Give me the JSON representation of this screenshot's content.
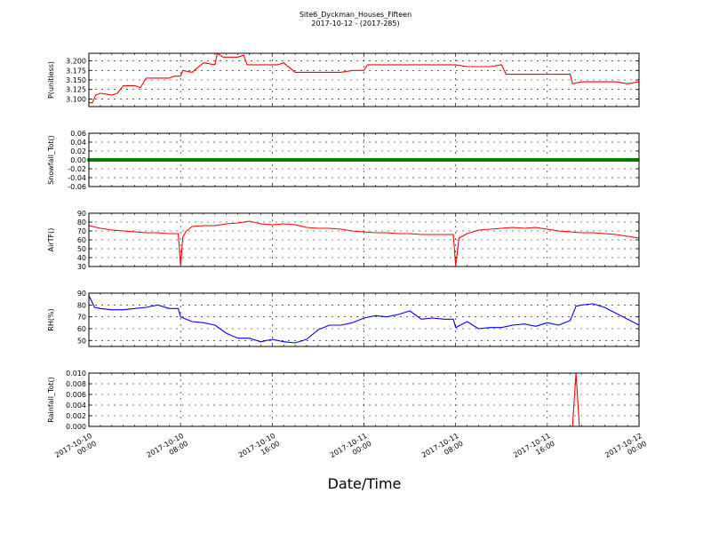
{
  "chart_data": [
    {
      "type": "line",
      "title": "Site6_Dyckman_Houses_Fifteen",
      "subtitle": "2017-10-12 - (2017-285)",
      "ylabel": "P(unitless)",
      "ylim": [
        3.08,
        3.22
      ],
      "yticks": [
        "3.100",
        "3.125",
        "3.150",
        "3.175",
        "3.200"
      ],
      "ytick_values": [
        3.1,
        3.125,
        3.15,
        3.175,
        3.2
      ],
      "color": "#ff0000",
      "x_hours": [
        0,
        0.3,
        0.6,
        1,
        2,
        2.5,
        3,
        4,
        4.5,
        5,
        6,
        7,
        7.5,
        8,
        8.2,
        9,
        10,
        11,
        11.2,
        11.7,
        13,
        13.5,
        13.8,
        15,
        16,
        16.5,
        17,
        18,
        20,
        21,
        22,
        23,
        24,
        24.3,
        25,
        26,
        27,
        28,
        30,
        31,
        32,
        33,
        35,
        36,
        36.4,
        37,
        38,
        39,
        40,
        41,
        42,
        42.2,
        43,
        44,
        45,
        46,
        47,
        48
      ],
      "y": [
        3.09,
        3.09,
        3.11,
        3.115,
        3.11,
        3.115,
        3.135,
        3.135,
        3.13,
        3.155,
        3.155,
        3.155,
        3.16,
        3.16,
        3.175,
        3.17,
        3.195,
        3.19,
        3.22,
        3.21,
        3.21,
        3.215,
        3.19,
        3.19,
        3.19,
        3.19,
        3.195,
        3.17,
        3.17,
        3.17,
        3.17,
        3.175,
        3.175,
        3.19,
        3.19,
        3.19,
        3.19,
        3.19,
        3.19,
        3.19,
        3.19,
        3.185,
        3.185,
        3.19,
        3.165,
        3.165,
        3.165,
        3.165,
        3.165,
        3.165,
        3.165,
        3.14,
        3.145,
        3.145,
        3.145,
        3.145,
        3.14,
        3.145
      ]
    },
    {
      "type": "scatter",
      "ylabel": "Snowfall_Tot()",
      "ylim": [
        -0.06,
        0.06
      ],
      "yticks": [
        "-0.06",
        "-0.04",
        "-0.02",
        "0.00",
        "0.02",
        "0.04",
        "0.06"
      ],
      "ytick_values": [
        -0.06,
        -0.04,
        -0.02,
        0,
        0.02,
        0.04,
        0.06
      ],
      "color": "#008000",
      "constant_value": 0.0
    },
    {
      "type": "line",
      "ylabel": "AirTF()",
      "ylim": [
        30,
        90
      ],
      "yticks": [
        "30",
        "40",
        "50",
        "60",
        "70",
        "80",
        "90"
      ],
      "ytick_values": [
        30,
        40,
        50,
        60,
        70,
        80,
        90
      ],
      "color": "#ff0000",
      "x_hours": [
        0,
        1,
        2,
        3,
        4,
        5,
        6,
        7,
        7.8,
        8,
        8.2,
        8.5,
        9,
        10,
        11,
        12,
        13,
        14,
        15,
        16,
        17,
        18,
        19,
        20,
        21,
        22,
        23,
        24,
        25,
        26,
        27,
        28,
        29,
        30,
        31,
        31.8,
        32,
        32.3,
        33,
        34,
        35,
        36,
        37,
        38,
        39,
        40,
        41,
        42,
        43,
        44,
        45,
        46,
        47,
        48
      ],
      "y": [
        76,
        73,
        71,
        70,
        69,
        68,
        68,
        67,
        67,
        31,
        63,
        70,
        75,
        76,
        76,
        78,
        79,
        81,
        78,
        77,
        78,
        77,
        74,
        73,
        73,
        72,
        70,
        69,
        68,
        68,
        67,
        67,
        66,
        66,
        66,
        66,
        31,
        62,
        67,
        71,
        72,
        73,
        74,
        73,
        74,
        72,
        70,
        69,
        68,
        68,
        67,
        66,
        64,
        62
      ]
    },
    {
      "type": "line",
      "ylabel": "RH(%)",
      "ylim": [
        45,
        90
      ],
      "yticks": [
        "50",
        "60",
        "70",
        "80",
        "90"
      ],
      "ytick_values": [
        50,
        60,
        70,
        80,
        90
      ],
      "color": "#0000ff",
      "x_hours": [
        0,
        0.5,
        1,
        2,
        3,
        4,
        5,
        6,
        7,
        7.8,
        8,
        9,
        10,
        11,
        12,
        13,
        14,
        15,
        16,
        17,
        18,
        19,
        20,
        21,
        22,
        23,
        24,
        25,
        26,
        27,
        28,
        29,
        30,
        31,
        31.8,
        32,
        33,
        34,
        35,
        36,
        37,
        38,
        39,
        40,
        41,
        42,
        42.5,
        43,
        44,
        45,
        46,
        47,
        48
      ],
      "y": [
        88,
        78,
        77,
        76,
        76,
        77,
        78,
        80,
        77,
        77,
        70,
        66,
        65,
        63,
        56,
        52,
        52,
        49,
        51,
        49,
        48,
        51,
        59,
        63,
        63,
        65,
        69,
        71,
        70,
        72,
        75,
        68,
        69,
        68,
        68,
        61,
        66,
        60,
        61,
        61,
        63,
        64,
        62,
        65,
        63,
        67,
        79,
        80,
        81,
        78,
        73,
        68,
        63
      ]
    },
    {
      "type": "line",
      "ylabel": "Rainfall_Tot()",
      "ylim": [
        0,
        0.01
      ],
      "yticks": [
        "0.000",
        "0.002",
        "0.004",
        "0.006",
        "0.008",
        "0.010"
      ],
      "ytick_values": [
        0,
        0.002,
        0.004,
        0.006,
        0.008,
        0.01
      ],
      "color": "#ff0000",
      "x_hours": [
        0,
        42.2,
        42.5,
        42.8,
        48
      ],
      "y": [
        0,
        0,
        0.01,
        0,
        0
      ]
    }
  ],
  "x_axis": {
    "label": "Date/Time",
    "range_hours": [
      0,
      48
    ],
    "tick_hours": [
      0,
      8,
      16,
      24,
      32,
      40,
      48
    ],
    "tick_labels": [
      [
        "2017-10-10",
        "00:00"
      ],
      [
        "2017-10-10",
        "08:00"
      ],
      [
        "2017-10-10",
        "16:00"
      ],
      [
        "2017-10-11",
        "00:00"
      ],
      [
        "2017-10-11",
        "08:00"
      ],
      [
        "2017-10-11",
        "16:00"
      ],
      [
        "2017-10-12",
        "00:00"
      ]
    ],
    "grid": true
  }
}
